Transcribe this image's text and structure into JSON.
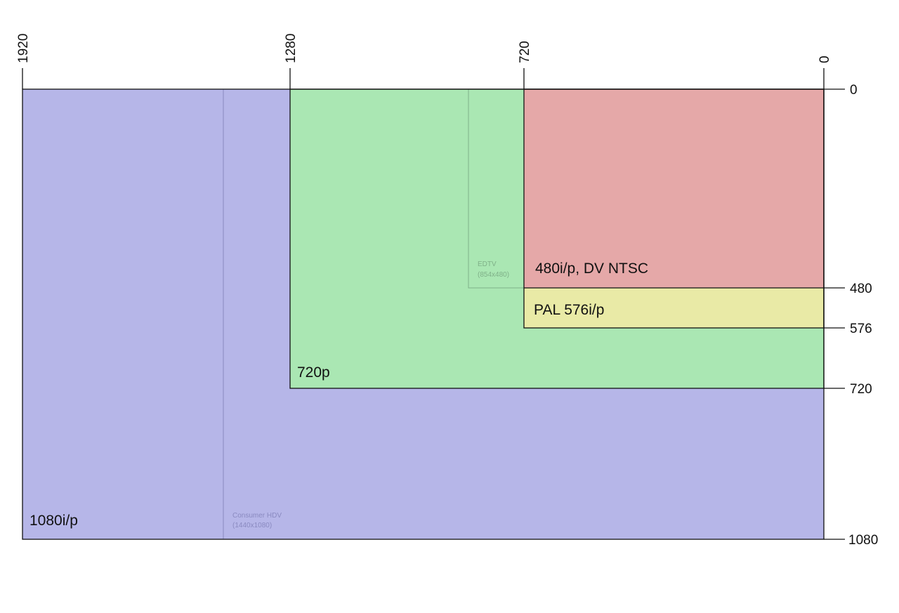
{
  "axes": {
    "top_ticks": [
      "1920",
      "1280",
      "720",
      "0"
    ],
    "right_ticks": [
      "0",
      "480",
      "576",
      "720",
      "1080"
    ]
  },
  "formats": {
    "hd1080": {
      "label": "1080i/p",
      "color": "#b6b6e8"
    },
    "hdv": {
      "line1": "Consumer HDV",
      "line2": "(1440x1080)",
      "text_color": "#8a8ac0"
    },
    "hd720": {
      "label": "720p",
      "color": "#aae7b3"
    },
    "edtv": {
      "line1": "EDTV",
      "line2": "(854x480)",
      "text_color": "#7fb088"
    },
    "pal": {
      "label": "PAL 576i/p",
      "color": "#e9eaa6"
    },
    "ntsc": {
      "label": "480i/p, DV NTSC",
      "color": "#e5a8a8"
    }
  }
}
